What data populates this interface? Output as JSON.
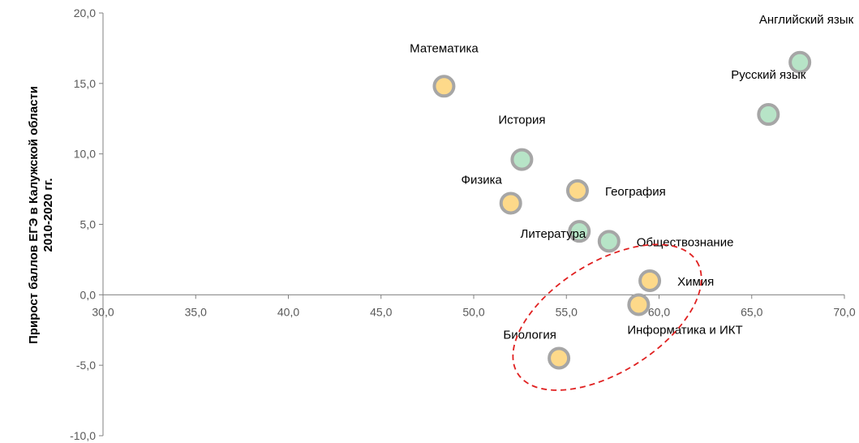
{
  "chart_data": {
    "type": "scatter",
    "ylabel_lines": [
      "Прирост баллов ЕГЭ  в Калужской области",
      "2010-2020 гг."
    ],
    "xlim": [
      30,
      70
    ],
    "ylim": [
      -10,
      20
    ],
    "x_ticks": [
      "30,0",
      "35,0",
      "40,0",
      "45,0",
      "50,0",
      "55,0",
      "60,0",
      "65,0",
      "70,0"
    ],
    "y_ticks": [
      "20,0",
      "15,0",
      "10,0",
      "5,0",
      "0,0",
      "-5,0",
      "-10,0"
    ],
    "grid": false,
    "colors": {
      "green_fill": "#b7e4c7",
      "orange_fill": "#fdd98a",
      "marker_border": "#a6a6a6",
      "ellipse": "#e02020",
      "axis": "#808080"
    },
    "points": [
      {
        "label": "Английский язык",
        "x": 67.6,
        "y": 16.5,
        "color": "green",
        "label_pos": "top-left"
      },
      {
        "label": "Русский язык",
        "x": 65.9,
        "y": 12.8,
        "color": "green",
        "label_pos": "above"
      },
      {
        "label": "Математика",
        "x": 48.4,
        "y": 14.8,
        "color": "orange",
        "label_pos": "above-right"
      },
      {
        "label": "История",
        "x": 52.6,
        "y": 9.6,
        "color": "green",
        "label_pos": "above"
      },
      {
        "label": "Физика",
        "x": 52.0,
        "y": 6.5,
        "color": "orange",
        "label_pos": "above-left"
      },
      {
        "label": "География",
        "x": 55.6,
        "y": 7.4,
        "color": "orange",
        "label_pos": "right"
      },
      {
        "label": "Литература",
        "x": 55.7,
        "y": 4.5,
        "color": "green",
        "label_pos": "left"
      },
      {
        "label": "Обществознание",
        "x": 57.3,
        "y": 3.8,
        "color": "green",
        "label_pos": "right"
      },
      {
        "label": "Химия",
        "x": 59.5,
        "y": 1.0,
        "color": "orange",
        "label_pos": "right"
      },
      {
        "label": "Информатика и ИКТ",
        "x": 58.9,
        "y": -0.7,
        "color": "orange",
        "label_pos": "below-right"
      },
      {
        "label": "Биология",
        "x": 54.6,
        "y": -4.5,
        "color": "orange",
        "label_pos": "above-left"
      }
    ],
    "highlight_ellipse": {
      "cx": 57.2,
      "cy": -1.6,
      "rx": 5.7,
      "ry": 3.9,
      "rotate_deg": -32
    }
  }
}
